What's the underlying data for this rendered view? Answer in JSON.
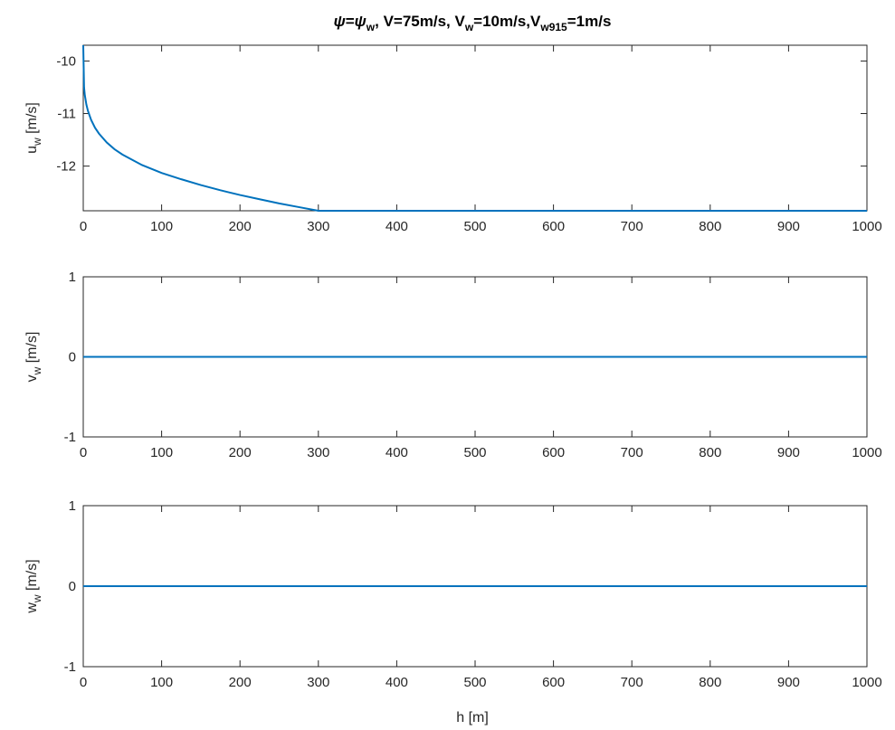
{
  "title": {
    "psi_a": "ψ",
    "eq": "=",
    "psi_b": "ψ",
    "psi_b_sub": "w",
    "part1": ", V=75m/s, V",
    "vw_sub": "w",
    "part2": "=10m/s,V",
    "v915_sub": "w915",
    "part3": "=1m/s"
  },
  "xlabel": "h [m]",
  "colors": {
    "series": "#0072BD",
    "axis": "#262626"
  },
  "chart_data": [
    {
      "type": "line",
      "ylabel_main": "u",
      "ylabel_sub": "w",
      "ylabel_unit": " [m/s]",
      "xlim": [
        0,
        1000
      ],
      "ylim": [
        -12.85,
        -9.7
      ],
      "xticks": [
        0,
        100,
        200,
        300,
        400,
        500,
        600,
        700,
        800,
        900,
        1000
      ],
      "xtick_labels": [
        "0",
        "100",
        "200",
        "300",
        "400",
        "500",
        "600",
        "700",
        "800",
        "900",
        "1000"
      ],
      "yticks": [
        -10,
        -11,
        -12
      ],
      "ytick_labels": [
        "-10",
        "-11",
        "-12"
      ],
      "grid": false,
      "series": [
        {
          "x": [
            0,
            1,
            2,
            4,
            6,
            10,
            15,
            20,
            30,
            40,
            50,
            75,
            100,
            125,
            150,
            175,
            200,
            225,
            250,
            275,
            300,
            1000
          ],
          "y": [
            -9.7,
            -10.5,
            -10.65,
            -10.83,
            -10.95,
            -11.12,
            -11.27,
            -11.38,
            -11.55,
            -11.68,
            -11.78,
            -11.98,
            -12.13,
            -12.25,
            -12.36,
            -12.46,
            -12.55,
            -12.63,
            -12.71,
            -12.78,
            -12.85,
            -12.85
          ]
        }
      ]
    },
    {
      "type": "line",
      "ylabel_main": "v",
      "ylabel_sub": "w",
      "ylabel_unit": " [m/s]",
      "xlim": [
        0,
        1000
      ],
      "ylim": [
        -1,
        1
      ],
      "xticks": [
        0,
        100,
        200,
        300,
        400,
        500,
        600,
        700,
        800,
        900,
        1000
      ],
      "xtick_labels": [
        "0",
        "100",
        "200",
        "300",
        "400",
        "500",
        "600",
        "700",
        "800",
        "900",
        "1000"
      ],
      "yticks": [
        1,
        0,
        -1
      ],
      "ytick_labels": [
        "1",
        "0",
        "-1"
      ],
      "grid": false,
      "series": [
        {
          "x": [
            0,
            1000
          ],
          "y": [
            0,
            0
          ]
        }
      ]
    },
    {
      "type": "line",
      "ylabel_main": "w",
      "ylabel_sub": "w",
      "ylabel_unit": " [m/s]",
      "xlim": [
        0,
        1000
      ],
      "ylim": [
        -1,
        1
      ],
      "xticks": [
        0,
        100,
        200,
        300,
        400,
        500,
        600,
        700,
        800,
        900,
        1000
      ],
      "xtick_labels": [
        "0",
        "100",
        "200",
        "300",
        "400",
        "500",
        "600",
        "700",
        "800",
        "900",
        "1000"
      ],
      "yticks": [
        1,
        0,
        -1
      ],
      "ytick_labels": [
        "1",
        "0",
        "-1"
      ],
      "grid": false,
      "series": [
        {
          "x": [
            0,
            1000
          ],
          "y": [
            0,
            0
          ]
        }
      ]
    }
  ]
}
